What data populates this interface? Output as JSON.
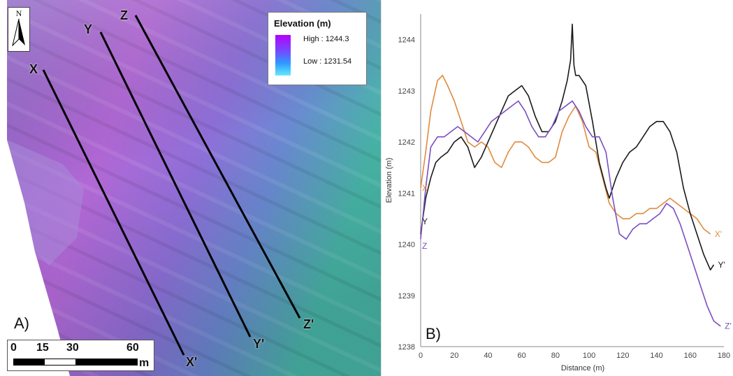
{
  "map": {
    "panel_label": "A)",
    "north_label": "N",
    "legend": {
      "title": "Elevation (m)",
      "high_label": "High : 1244.3",
      "low_label": "Low : 1231.54"
    },
    "profile_lines": [
      {
        "start_label": "X",
        "end_label": "X'"
      },
      {
        "start_label": "Y",
        "end_label": "Y'"
      },
      {
        "start_label": "Z",
        "end_label": "Z'"
      }
    ],
    "scale": {
      "labels": [
        "0",
        "15",
        "30",
        "60"
      ],
      "unit": "m"
    },
    "colors": {
      "high": "#b400ff",
      "mid": "#6a55ff",
      "low": "#63e8ff"
    }
  },
  "profile_panel_label": "B)",
  "chart_data": {
    "type": "line",
    "xlabel": "Distance (m)",
    "ylabel": "Elevation (m)",
    "xlim": [
      0,
      180
    ],
    "ylim": [
      1238,
      1244.5
    ],
    "xticks": [
      0,
      20,
      40,
      60,
      80,
      100,
      120,
      140,
      160,
      180
    ],
    "yticks": [
      1238,
      1239,
      1240,
      1241,
      1242,
      1243,
      1244
    ],
    "series": [
      {
        "start_label": "X",
        "end_label": "X'",
        "color": "#e08a3c",
        "x": [
          0,
          3,
          6,
          10,
          13,
          16,
          20,
          24,
          28,
          32,
          36,
          40,
          44,
          48,
          52,
          56,
          60,
          64,
          68,
          72,
          76,
          80,
          84,
          88,
          92,
          96,
          100,
          104,
          108,
          112,
          116,
          120,
          124,
          128,
          132,
          136,
          140,
          144,
          148,
          152,
          156,
          160,
          164,
          168,
          172
        ],
        "y": [
          1241.1,
          1241.8,
          1242.6,
          1243.2,
          1243.3,
          1243.1,
          1242.8,
          1242.4,
          1242.0,
          1241.9,
          1242.0,
          1241.9,
          1241.6,
          1241.5,
          1241.8,
          1242.0,
          1242.0,
          1241.9,
          1241.7,
          1241.6,
          1241.6,
          1241.7,
          1242.2,
          1242.5,
          1242.7,
          1242.4,
          1241.9,
          1241.8,
          1241.3,
          1240.8,
          1240.6,
          1240.5,
          1240.5,
          1240.6,
          1240.6,
          1240.7,
          1240.7,
          1240.8,
          1240.9,
          1240.8,
          1240.7,
          1240.6,
          1240.5,
          1240.3,
          1240.2
        ]
      },
      {
        "start_label": "Y",
        "end_label": "Y'",
        "color": "#1a1a1a",
        "x": [
          0,
          3,
          6,
          9,
          12,
          16,
          20,
          24,
          28,
          32,
          36,
          40,
          44,
          48,
          52,
          56,
          60,
          64,
          68,
          72,
          76,
          80,
          84,
          87,
          89,
          90,
          91,
          92,
          94,
          98,
          102,
          106,
          110,
          112,
          116,
          120,
          124,
          128,
          132,
          136,
          140,
          144,
          148,
          152,
          156,
          160,
          164,
          168,
          172,
          174
        ],
        "y": [
          1240.2,
          1240.9,
          1241.3,
          1241.6,
          1241.7,
          1241.8,
          1242.0,
          1242.1,
          1241.9,
          1241.5,
          1241.7,
          1242.0,
          1242.3,
          1242.6,
          1242.9,
          1243.0,
          1243.1,
          1242.9,
          1242.5,
          1242.2,
          1242.2,
          1242.4,
          1242.8,
          1243.2,
          1243.6,
          1244.3,
          1243.5,
          1243.3,
          1243.3,
          1243.1,
          1242.4,
          1241.6,
          1241.1,
          1240.9,
          1241.3,
          1241.6,
          1241.8,
          1241.9,
          1242.1,
          1242.3,
          1242.4,
          1242.4,
          1242.2,
          1241.8,
          1241.1,
          1240.6,
          1240.2,
          1239.8,
          1239.5,
          1239.6
        ]
      },
      {
        "start_label": "Z",
        "end_label": "Z'",
        "color": "#7a4fc0",
        "x": [
          0,
          3,
          6,
          10,
          14,
          18,
          22,
          26,
          30,
          34,
          38,
          42,
          46,
          50,
          54,
          58,
          62,
          66,
          70,
          74,
          78,
          82,
          86,
          90,
          94,
          98,
          102,
          106,
          110,
          114,
          118,
          122,
          126,
          130,
          134,
          138,
          142,
          146,
          150,
          154,
          158,
          162,
          166,
          170,
          174,
          178
        ],
        "y": [
          1240.1,
          1241.1,
          1241.9,
          1242.1,
          1242.1,
          1242.2,
          1242.3,
          1242.2,
          1242.1,
          1242.0,
          1242.2,
          1242.4,
          1242.5,
          1242.6,
          1242.7,
          1242.8,
          1242.6,
          1242.3,
          1242.1,
          1242.1,
          1242.3,
          1242.6,
          1242.7,
          1242.8,
          1242.6,
          1242.3,
          1242.1,
          1242.1,
          1241.8,
          1240.9,
          1240.2,
          1240.1,
          1240.3,
          1240.4,
          1240.4,
          1240.5,
          1240.6,
          1240.8,
          1240.7,
          1240.4,
          1240.0,
          1239.6,
          1239.2,
          1238.8,
          1238.5,
          1238.4
        ]
      }
    ]
  }
}
